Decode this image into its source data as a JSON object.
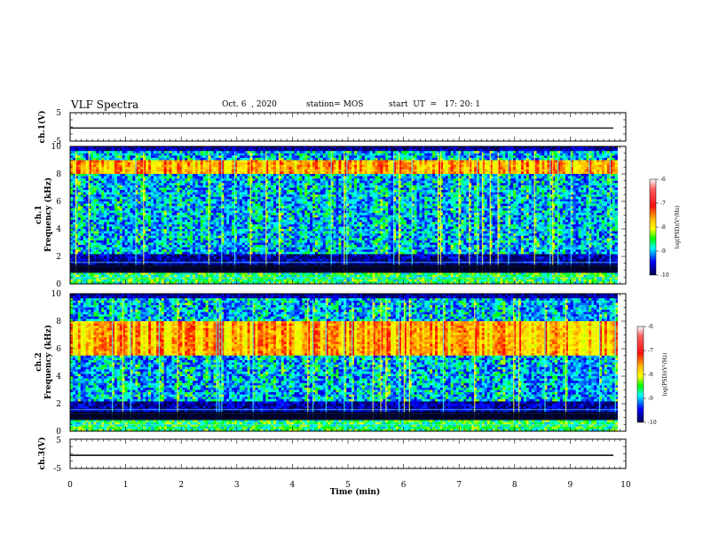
{
  "header": {
    "title": "VLF Spectra",
    "date": "Oct. 6  , 2020",
    "station": "station= MOS",
    "start": "start  UT  =   17: 20: 1"
  },
  "chart_data": [
    {
      "type": "line",
      "panel": "ch1-voltage",
      "ylabel": "ch.1(V)",
      "ylim": [
        -5,
        5
      ],
      "yticks": [
        "5",
        "-5"
      ],
      "x": [
        0,
        10
      ],
      "y": [
        -0.4,
        -0.4
      ]
    },
    {
      "type": "heatmap",
      "panel": "ch1-spectrogram",
      "ylabel": "ch.1\nFrequency  (kHz)",
      "ylabel_line1": "ch.1",
      "ylabel_line2": "Frequency  (kHz)",
      "ylim": [
        0,
        10
      ],
      "yticks": [
        "0",
        "2",
        "4",
        "6",
        "8",
        "10"
      ],
      "xlim": [
        0,
        9.85
      ],
      "strong_band_khz": [
        8.0,
        9.0
      ],
      "colorbar": {
        "label": "log(PSD)(V²/Hz)",
        "range": [
          -10,
          -6
        ],
        "ticks": [
          "-6",
          "-7",
          "-8",
          "-9",
          "-10"
        ]
      }
    },
    {
      "type": "heatmap",
      "panel": "ch2-spectrogram",
      "ylabel": "ch.2\nFrequency  (kHz)",
      "ylabel_line1": "ch.2",
      "ylabel_line2": "Frequency  (kHz)",
      "ylim": [
        0,
        10
      ],
      "yticks": [
        "0",
        "2",
        "4",
        "6",
        "8",
        "10"
      ],
      "xlim": [
        0,
        9.85
      ],
      "strong_band_khz": [
        5.5,
        8.0
      ],
      "colorbar": {
        "label": "log(PSD)(V²/Hz)",
        "range": [
          -10,
          -6
        ],
        "ticks": [
          "-6",
          "-7",
          "-8",
          "-9",
          "-10"
        ]
      }
    },
    {
      "type": "line",
      "panel": "ch3-voltage",
      "ylabel": "ch.3(V)",
      "ylim": [
        -5,
        5
      ],
      "yticks": [
        "5",
        "-5"
      ],
      "x": [
        0,
        10
      ],
      "y": [
        -0.5,
        -0.5
      ]
    }
  ],
  "xaxis": {
    "label": "Time  (min)",
    "range": [
      0,
      10
    ],
    "ticks": [
      "0",
      "1",
      "2",
      "3",
      "4",
      "5",
      "6",
      "7",
      "8",
      "9",
      "10"
    ]
  }
}
